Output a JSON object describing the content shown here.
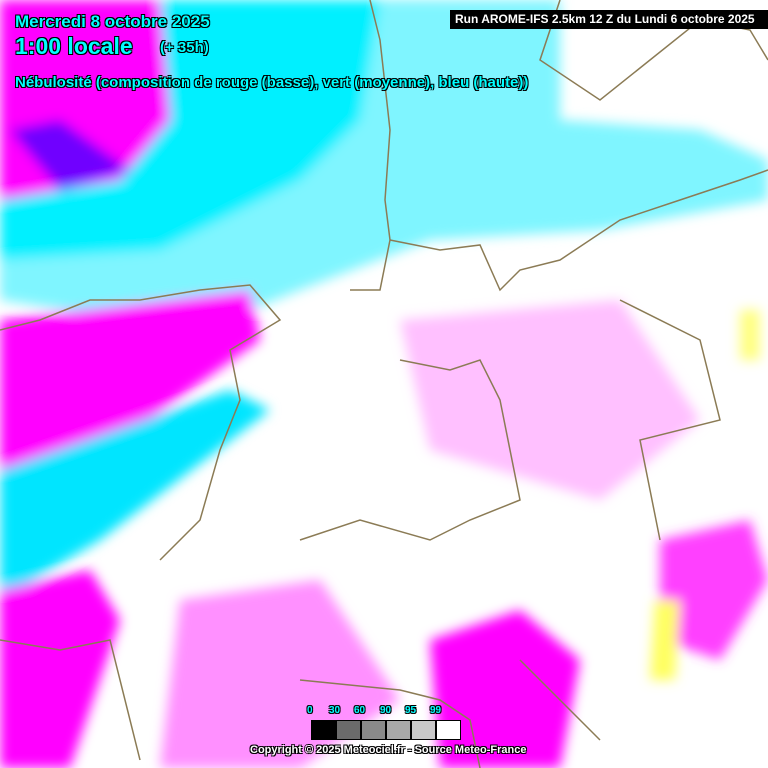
{
  "header": {
    "date": "Mercredi 8 octobre 2025",
    "time": "1:00 locale",
    "lead": "(+ 35h)",
    "parameter": "Nébulosité (composition de rouge (basse), vert (moyenne), bleu (haute))",
    "run": "Run AROME-IFS 2.5km 12 Z du Lundi 6 octobre 2025"
  },
  "legend": {
    "labels": [
      "0",
      "30",
      "60",
      "90",
      "95",
      "99"
    ],
    "colors": [
      "#000000",
      "#6b6b6b",
      "#8a8a8a",
      "#a8a8a8",
      "#c8c8c8",
      "#ffffff"
    ]
  },
  "footer": {
    "copyright": "Copyright © 2025 Meteociel.fr - Source Meteo-France"
  },
  "colors": {
    "high_cloud": "#ff00ff",
    "mid_high": "#00ffff",
    "deep": "#8000ff",
    "low": "#ffff80",
    "coast": "#8b7b55"
  }
}
